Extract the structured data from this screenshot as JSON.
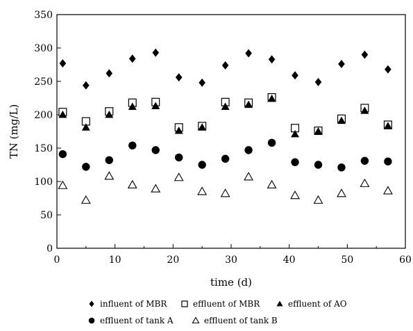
{
  "chart_data": {
    "type": "scatter",
    "title": "",
    "xlabel": "time (d)",
    "ylabel": "TN (mg/L)",
    "xlim": [
      0,
      60
    ],
    "ylim": [
      0,
      350
    ],
    "xticks": [
      0,
      10,
      20,
      30,
      40,
      50,
      60
    ],
    "yticks": [
      0,
      50,
      100,
      150,
      200,
      250,
      300,
      350
    ],
    "grid": false,
    "legend_position": "bottom",
    "x": [
      1,
      5,
      9,
      13,
      17,
      21,
      25,
      29,
      33,
      37,
      41,
      45,
      49,
      53,
      57
    ],
    "series": [
      {
        "name": "influent of MBR",
        "marker": "diamond-filled",
        "values": [
          277,
          244,
          262,
          284,
          293,
          256,
          248,
          274,
          292,
          283,
          259,
          249,
          276,
          290,
          268
        ]
      },
      {
        "name": "effluent of MBR",
        "marker": "square-open",
        "values": [
          204,
          190,
          205,
          218,
          219,
          181,
          183,
          219,
          218,
          226,
          180,
          176,
          194,
          210,
          185
        ]
      },
      {
        "name": "effluent of AO",
        "marker": "triangle-filled",
        "values": [
          200,
          181,
          200,
          212,
          213,
          176,
          181,
          212,
          215,
          224,
          171,
          175,
          191,
          206,
          183
        ]
      },
      {
        "name": "effluent of tank A",
        "marker": "circle-filled",
        "values": [
          141,
          122,
          132,
          154,
          147,
          136,
          125,
          134,
          147,
          158,
          129,
          125,
          121,
          131,
          130
        ]
      },
      {
        "name": "effluent of tank B",
        "marker": "triangle-open",
        "values": [
          94,
          72,
          108,
          95,
          89,
          106,
          85,
          82,
          107,
          95,
          79,
          72,
          82,
          97,
          86
        ]
      }
    ]
  }
}
